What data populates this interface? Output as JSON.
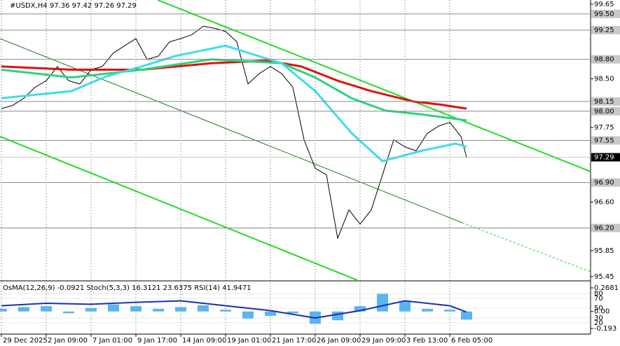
{
  "chart_data": {
    "type": "line",
    "title": "#USDX,H4  97.36 97.42 97.26 97.29",
    "xlim": [
      -0.5,
      210.25
    ],
    "xticks": [
      {
        "value": 0,
        "label": "29 Dec 2025"
      },
      {
        "value": 16,
        "label": "2 Jan 09:00"
      },
      {
        "value": 32,
        "label": "7 Jan 01:00"
      },
      {
        "value": 48,
        "label": "9 Jan 17:00"
      },
      {
        "value": 64,
        "label": "14 Jan 09:00"
      },
      {
        "value": 80,
        "label": "19 Jan 01:00"
      },
      {
        "value": 96,
        "label": "21 Jan 17:00"
      },
      {
        "value": 112,
        "label": "26 Jan 09:00"
      },
      {
        "value": 128,
        "label": "29 Jan 09:00"
      },
      {
        "value": 144,
        "label": "3 Feb 13:00"
      },
      {
        "value": 160,
        "label": "6 Feb 05:00"
      }
    ],
    "ylim": [
      95.395,
      99.715
    ],
    "yticks": [
      99.65,
      {
        "value": 98.5,
        "label": "98.50"
      },
      97.75,
      {
        "value": 96.6,
        "label": "96.60"
      },
      95.85,
      95.45
    ],
    "levels": [
      {
        "value": 99.5,
        "label": "99.50"
      },
      99.25,
      {
        "value": 98.8,
        "label": "98.80"
      },
      98.15,
      {
        "value": 98,
        "label": "98.00"
      },
      97.55,
      {
        "value": 96.9,
        "label": "96.90"
      },
      {
        "value": 96.2,
        "label": "96.20"
      }
    ],
    "last_price": 97.29,
    "grid": true,
    "series": [
      {
        "color": "#000000",
        "width": 1,
        "x": [
          0,
          4,
          8,
          12,
          16,
          20,
          24,
          28,
          32,
          36,
          40,
          44,
          48,
          52,
          56,
          60,
          64,
          68,
          72,
          76,
          80,
          84,
          88,
          92,
          96,
          100,
          104,
          108,
          112,
          116,
          120,
          124,
          128,
          132,
          136,
          140,
          144,
          148,
          152,
          156,
          160,
          164,
          166
        ],
        "values": [
          98.04,
          98.09,
          98.2,
          98.37,
          98.47,
          98.69,
          98.47,
          98.42,
          98.64,
          98.69,
          98.9,
          99.01,
          99.12,
          98.8,
          98.85,
          99.07,
          99.12,
          99.18,
          99.31,
          99.28,
          99.23,
          99.07,
          98.42,
          98.58,
          98.69,
          98.58,
          98.37,
          97.56,
          97.12,
          97.02,
          96.04,
          96.48,
          96.26,
          96.48,
          97.02,
          97.56,
          97.45,
          97.39,
          97.66,
          97.77,
          97.83,
          97.61,
          97.29
        ]
      },
      {
        "color": "#e01010",
        "width": 3,
        "x": [
          0,
          25,
          50,
          75,
          95,
          107,
          120,
          132,
          147,
          157,
          166
        ],
        "values": [
          98.69,
          98.64,
          98.64,
          98.74,
          98.78,
          98.69,
          98.47,
          98.31,
          98.15,
          98.1,
          98.04
        ]
      },
      {
        "color": "#2bd47f",
        "width": 3,
        "x": [
          0,
          25,
          50,
          75,
          100,
          112,
          125,
          137,
          150,
          166
        ],
        "values": [
          98.64,
          98.52,
          98.64,
          98.8,
          98.74,
          98.52,
          98.2,
          98.01,
          97.95,
          97.86
        ]
      },
      {
        "color": "#3fdde6",
        "width": 3,
        "x": [
          0,
          25,
          37,
          50,
          62,
          80,
          100,
          112,
          125,
          136,
          150,
          162,
          166
        ],
        "values": [
          98.2,
          98.31,
          98.53,
          98.69,
          98.85,
          99.01,
          98.74,
          98.31,
          97.66,
          97.23,
          97.39,
          97.5,
          97.45
        ]
      }
    ],
    "trendlines": [
      {
        "color": "#22dd22",
        "width": 2,
        "dash": false,
        "x": [
          55.75,
          210.25
        ],
        "values": [
          99.715,
          97.07
        ]
      },
      {
        "color": "#22dd22",
        "width": 2,
        "dash": false,
        "x": [
          -0.5,
          127
        ],
        "values": [
          97.61,
          95.395
        ]
      },
      {
        "color": "#1a7a1a",
        "width": 1,
        "dash": false,
        "x": [
          -0.5,
          164.5
        ],
        "values": [
          99.12,
          96.28
        ]
      },
      {
        "color": "#22cc22",
        "width": 1,
        "dash": true,
        "x": [
          164.5,
          210.25
        ],
        "values": [
          96.28,
          95.525
        ]
      }
    ],
    "indicator": {
      "label": "OsMA(12,26,9) -0.0921  Stoch(5,3,3) 16.3121 23.6375  RSI(14) 41.9471",
      "y2lim": [
        -0.2566,
        0.3317
      ],
      "y2ticks": [
        0.2681,
        {
          "value": 0,
          "label": "0.00"
        },
        -0.193
      ],
      "osc_lim": [
        -3,
        103
      ],
      "osc_ticks": [
        80,
        70,
        50,
        30,
        20
      ],
      "osma": {
        "color": "#5ab4f0",
        "x": [
          0,
          8,
          16,
          24,
          32,
          40,
          48,
          56,
          64,
          72,
          80,
          88,
          96,
          104,
          112,
          120,
          128,
          136,
          144,
          152,
          160,
          166
        ],
        "values": [
          0.03,
          0.05,
          0.06,
          -0.02,
          0.04,
          0.08,
          0.06,
          0.03,
          0.05,
          0.07,
          0.02,
          -0.08,
          -0.05,
          -0.02,
          -0.14,
          -0.1,
          0.06,
          0.2,
          0.12,
          0.03,
          0.02,
          -0.0921
        ]
      },
      "rsi": {
        "color": "#1a2fb0",
        "x": [
          0,
          16,
          32,
          48,
          64,
          80,
          96,
          112,
          128,
          144,
          160,
          166
        ],
        "values": [
          55,
          60,
          58,
          62,
          65,
          55,
          45,
          30,
          45,
          65,
          55,
          41.9471
        ]
      }
    }
  }
}
